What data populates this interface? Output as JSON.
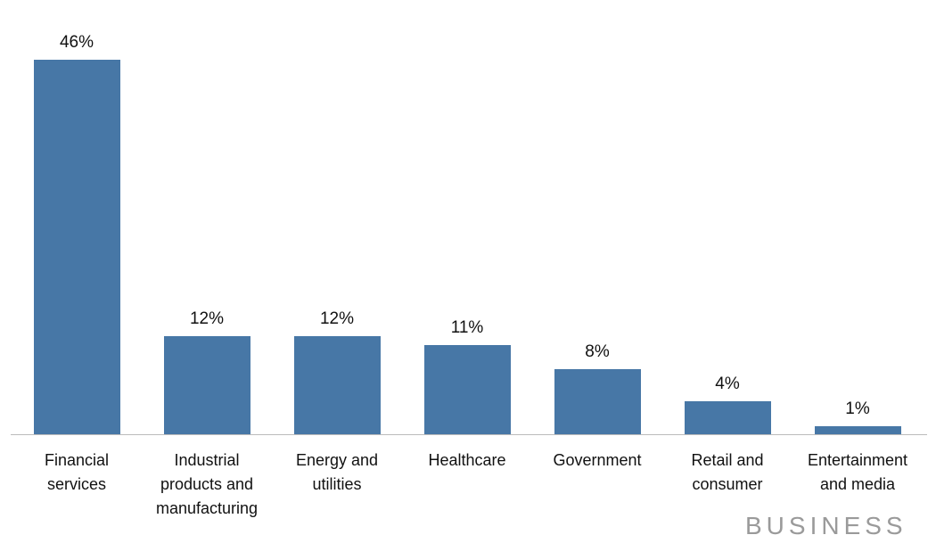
{
  "chart_data": {
    "type": "bar",
    "categories": [
      "Financial services",
      "Industrial products and manufacturing",
      "Energy and utilities",
      "Healthcare",
      "Government",
      "Retail and consumer",
      "Entertainment and media"
    ],
    "values": [
      46,
      12,
      12,
      11,
      8,
      4,
      1
    ],
    "value_labels": [
      "46%",
      "12%",
      "12%",
      "11%",
      "8%",
      "4%",
      "1%"
    ],
    "color": "#4777a6",
    "source": "BUSINESS"
  }
}
